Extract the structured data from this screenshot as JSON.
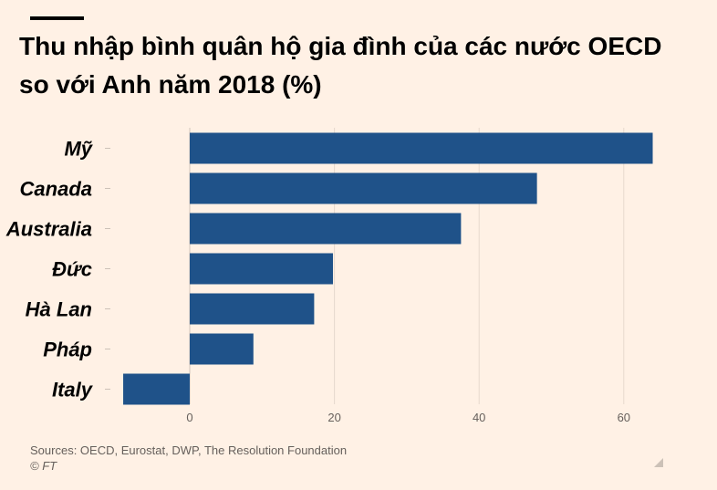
{
  "header": {
    "title_line1": "Thu nhập bình quân hộ gia đình của các nước OECD",
    "title_line2": "so với Anh năm 2018 (%)"
  },
  "footer": {
    "source": "Sources: OECD, Eurostat, DWP, The Resolution Foundation",
    "copyright": "© FT"
  },
  "colors": {
    "background": "#fff1e5",
    "bar": "#1f5289",
    "grid": "#e6d9ce",
    "text_muted": "#66605c"
  },
  "chart_data": {
    "type": "bar",
    "orientation": "horizontal",
    "categories": [
      "Mỹ",
      "Canada",
      "Australia",
      "Đức",
      "Hà Lan",
      "Pháp",
      "Italy"
    ],
    "values": [
      64,
      48,
      37.5,
      19.8,
      17.2,
      8.8,
      -9.2
    ],
    "xlim": [
      -10,
      70
    ],
    "xticks": [
      0,
      20,
      40,
      60
    ],
    "grid": true,
    "title": "Thu nhập bình quân hộ gia đình của các nước OECD so với Anh năm 2018 (%)"
  }
}
